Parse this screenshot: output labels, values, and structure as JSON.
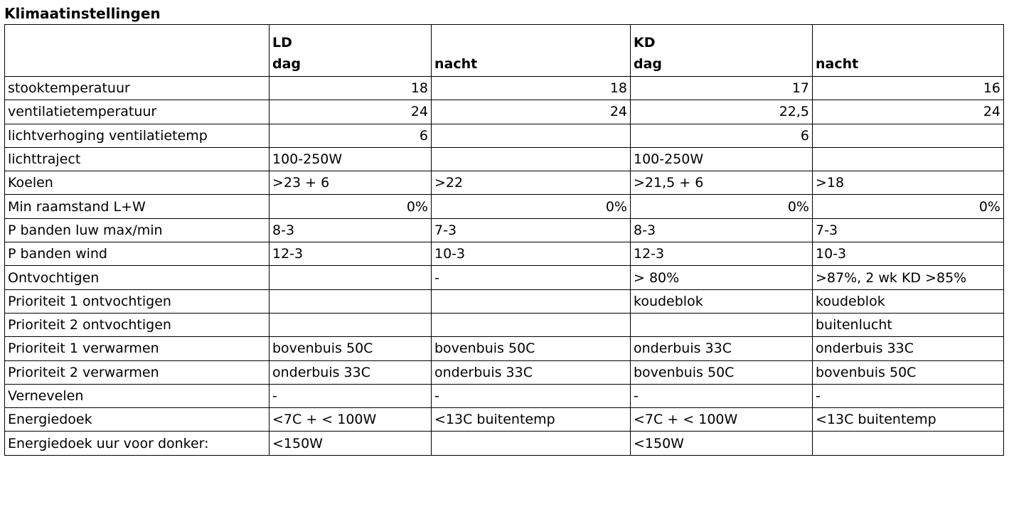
{
  "title": "Klimaatinstellingen",
  "header": {
    "groups": [
      "LD",
      "",
      "KD",
      ""
    ],
    "subs": [
      "dag",
      "nacht",
      "dag",
      "nacht"
    ]
  },
  "rows": [
    {
      "label": "stooktemperatuur",
      "cells": [
        {
          "value": "18",
          "align": "right"
        },
        {
          "value": "18",
          "align": "right"
        },
        {
          "value": "17",
          "align": "right"
        },
        {
          "value": "16",
          "align": "right"
        }
      ]
    },
    {
      "label": "ventilatietemperatuur",
      "cells": [
        {
          "value": "24",
          "align": "right"
        },
        {
          "value": "24",
          "align": "right"
        },
        {
          "value": "22,5",
          "align": "right"
        },
        {
          "value": "24",
          "align": "right"
        }
      ]
    },
    {
      "label": "lichtverhoging ventilatietemp",
      "cells": [
        {
          "value": "6",
          "align": "right"
        },
        {
          "value": "",
          "align": "left"
        },
        {
          "value": "6",
          "align": "right"
        },
        {
          "value": "",
          "align": "left"
        }
      ]
    },
    {
      "label": "lichttraject",
      "cells": [
        {
          "value": "100-250W",
          "align": "left"
        },
        {
          "value": "",
          "align": "left"
        },
        {
          "value": "100-250W",
          "align": "left"
        },
        {
          "value": "",
          "align": "left"
        }
      ]
    },
    {
      "label": "Koelen",
      "cells": [
        {
          "value": ">23 + 6",
          "align": "left"
        },
        {
          "value": ">22",
          "align": "left"
        },
        {
          "value": ">21,5 + 6",
          "align": "left"
        },
        {
          "value": ">18",
          "align": "left"
        }
      ]
    },
    {
      "label": "Min raamstand L+W",
      "cells": [
        {
          "value": "0%",
          "align": "right"
        },
        {
          "value": "0%",
          "align": "right"
        },
        {
          "value": "0%",
          "align": "right"
        },
        {
          "value": "0%",
          "align": "right"
        }
      ]
    },
    {
      "label": "P banden luw max/min",
      "cells": [
        {
          "value": "8-3",
          "align": "left"
        },
        {
          "value": "7-3",
          "align": "left"
        },
        {
          "value": "8-3",
          "align": "left"
        },
        {
          "value": "7-3",
          "align": "left"
        }
      ]
    },
    {
      "label": "P banden wind",
      "cells": [
        {
          "value": "12-3",
          "align": "left"
        },
        {
          "value": "10-3",
          "align": "left"
        },
        {
          "value": "12-3",
          "align": "left"
        },
        {
          "value": "10-3",
          "align": "left"
        }
      ]
    },
    {
      "label": "Ontvochtigen",
      "cells": [
        {
          "value": "",
          "align": "left"
        },
        {
          "value": "-",
          "align": "left"
        },
        {
          "value": "> 80%",
          "align": "left"
        },
        {
          "value": ">87%, 2 wk KD >85%",
          "align": "left"
        }
      ]
    },
    {
      "label": "Prioriteit 1 ontvochtigen",
      "cells": [
        {
          "value": "",
          "align": "left"
        },
        {
          "value": "",
          "align": "left"
        },
        {
          "value": "koudeblok",
          "align": "left"
        },
        {
          "value": "koudeblok",
          "align": "left"
        }
      ]
    },
    {
      "label": "Prioriteit 2 ontvochtigen",
      "cells": [
        {
          "value": "",
          "align": "left"
        },
        {
          "value": "",
          "align": "left"
        },
        {
          "value": "",
          "align": "left"
        },
        {
          "value": "buitenlucht",
          "align": "left"
        }
      ]
    },
    {
      "label": "Prioriteit 1 verwarmen",
      "cells": [
        {
          "value": "bovenbuis 50C",
          "align": "left"
        },
        {
          "value": "bovenbuis 50C",
          "align": "left"
        },
        {
          "value": "onderbuis 33C",
          "align": "left"
        },
        {
          "value": "onderbuis 33C",
          "align": "left"
        }
      ]
    },
    {
      "label": "Prioriteit 2 verwarmen",
      "cells": [
        {
          "value": "onderbuis 33C",
          "align": "left"
        },
        {
          "value": "onderbuis 33C",
          "align": "left"
        },
        {
          "value": "bovenbuis 50C",
          "align": "left"
        },
        {
          "value": "bovenbuis 50C",
          "align": "left"
        }
      ]
    },
    {
      "label": "Vernevelen",
      "cells": [
        {
          "value": "-",
          "align": "left"
        },
        {
          "value": "-",
          "align": "left"
        },
        {
          "value": "-",
          "align": "left"
        },
        {
          "value": "-",
          "align": "left"
        }
      ]
    },
    {
      "label": "Energiedoek",
      "cells": [
        {
          "value": "<7C + < 100W",
          "align": "left"
        },
        {
          "value": "<13C buitentemp",
          "align": "left"
        },
        {
          "value": "<7C + < 100W",
          "align": "left"
        },
        {
          "value": "<13C buitentemp",
          "align": "left"
        }
      ]
    },
    {
      "label": "Energiedoek uur voor donker:",
      "cells": [
        {
          "value": "<150W",
          "align": "left"
        },
        {
          "value": "",
          "align": "left"
        },
        {
          "value": "<150W",
          "align": "left"
        },
        {
          "value": "",
          "align": "left"
        }
      ]
    }
  ]
}
